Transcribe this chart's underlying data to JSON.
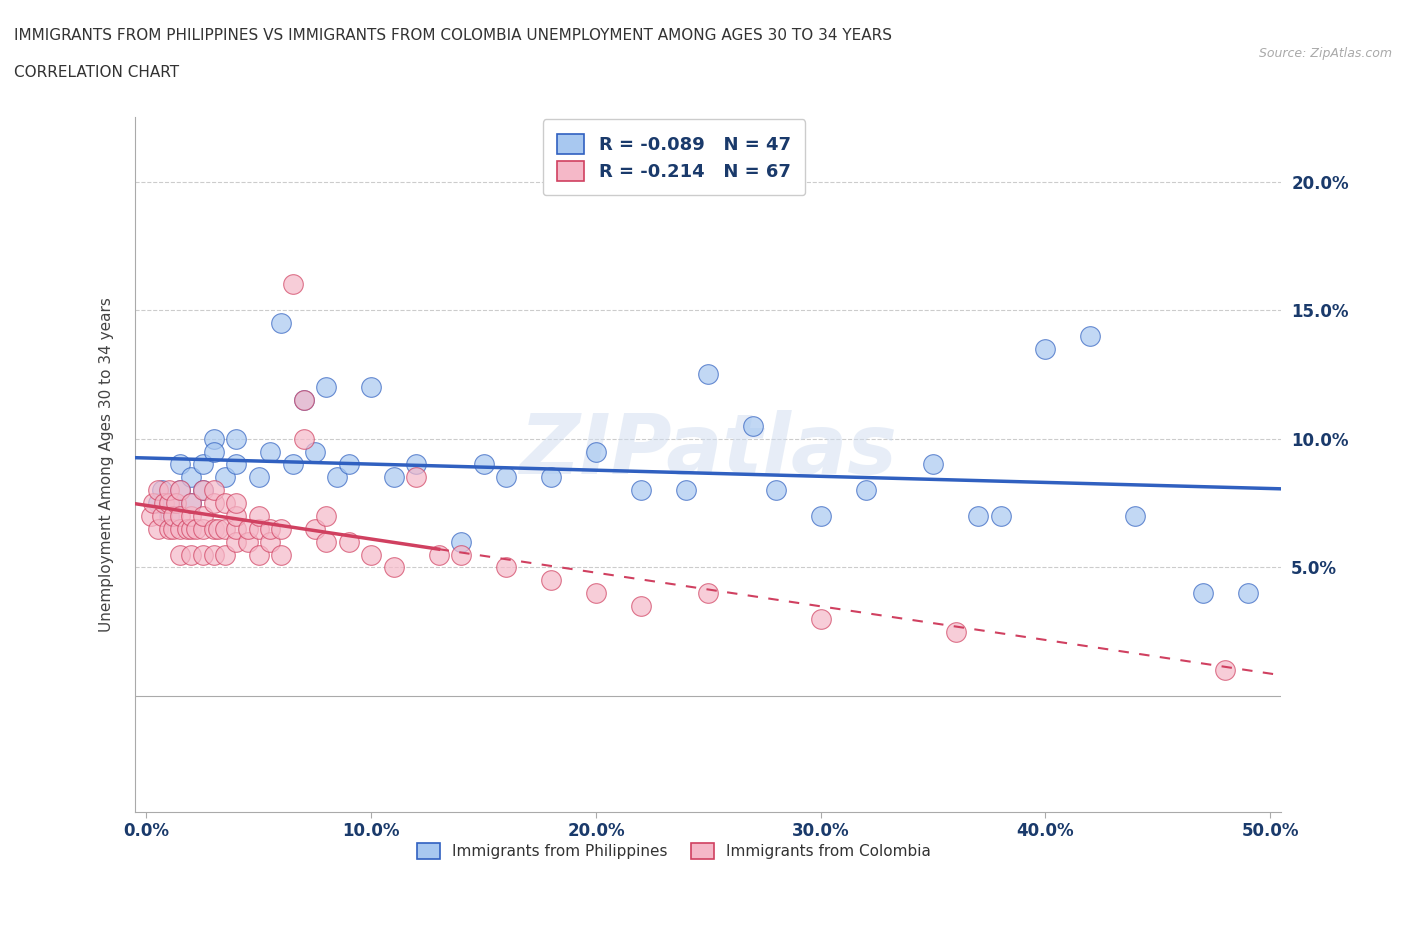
{
  "title_line1": "IMMIGRANTS FROM PHILIPPINES VS IMMIGRANTS FROM COLOMBIA UNEMPLOYMENT AMONG AGES 30 TO 34 YEARS",
  "title_line2": "CORRELATION CHART",
  "source": "Source: ZipAtlas.com",
  "xlabel_ticks": [
    0.0,
    0.1,
    0.2,
    0.3,
    0.4,
    0.5
  ],
  "xlabel_tick_labels": [
    "0.0%",
    "10.0%",
    "20.0%",
    "30.0%",
    "40.0%",
    "50.0%"
  ],
  "ylabel": "Unemployment Among Ages 30 to 34 years",
  "ylabel_ticks": [
    0.05,
    0.1,
    0.15,
    0.2
  ],
  "ylabel_tick_labels": [
    "5.0%",
    "10.0%",
    "15.0%",
    "20.0%"
  ],
  "xlim": [
    -0.005,
    0.505
  ],
  "ylim": [
    -0.045,
    0.225
  ],
  "yaxis_right": true,
  "color_philippines": "#a8c8f0",
  "color_colombia": "#f5b8c8",
  "color_regression_philippines": "#3060c0",
  "color_regression_colombia": "#d04060",
  "R_philippines": -0.089,
  "N_philippines": 47,
  "R_colombia": -0.214,
  "N_colombia": 67,
  "philippines_x": [
    0.005,
    0.007,
    0.01,
    0.012,
    0.015,
    0.015,
    0.02,
    0.02,
    0.025,
    0.025,
    0.03,
    0.03,
    0.035,
    0.04,
    0.04,
    0.05,
    0.055,
    0.06,
    0.065,
    0.07,
    0.075,
    0.08,
    0.085,
    0.09,
    0.1,
    0.11,
    0.12,
    0.14,
    0.15,
    0.16,
    0.18,
    0.2,
    0.22,
    0.24,
    0.25,
    0.27,
    0.28,
    0.3,
    0.32,
    0.35,
    0.37,
    0.38,
    0.4,
    0.42,
    0.44,
    0.47,
    0.49
  ],
  "philippines_y": [
    0.075,
    0.08,
    0.07,
    0.075,
    0.08,
    0.09,
    0.085,
    0.075,
    0.08,
    0.09,
    0.1,
    0.095,
    0.085,
    0.09,
    0.1,
    0.085,
    0.095,
    0.145,
    0.09,
    0.115,
    0.095,
    0.12,
    0.085,
    0.09,
    0.12,
    0.085,
    0.09,
    0.06,
    0.09,
    0.085,
    0.085,
    0.095,
    0.08,
    0.08,
    0.125,
    0.105,
    0.08,
    0.07,
    0.08,
    0.09,
    0.07,
    0.07,
    0.135,
    0.14,
    0.07,
    0.04,
    0.04
  ],
  "colombia_x": [
    0.002,
    0.003,
    0.005,
    0.005,
    0.007,
    0.008,
    0.01,
    0.01,
    0.01,
    0.012,
    0.012,
    0.013,
    0.015,
    0.015,
    0.015,
    0.015,
    0.018,
    0.02,
    0.02,
    0.02,
    0.02,
    0.022,
    0.025,
    0.025,
    0.025,
    0.025,
    0.03,
    0.03,
    0.03,
    0.03,
    0.032,
    0.035,
    0.035,
    0.035,
    0.04,
    0.04,
    0.04,
    0.04,
    0.045,
    0.045,
    0.05,
    0.05,
    0.05,
    0.055,
    0.055,
    0.06,
    0.06,
    0.065,
    0.07,
    0.07,
    0.075,
    0.08,
    0.08,
    0.09,
    0.1,
    0.11,
    0.12,
    0.13,
    0.14,
    0.16,
    0.18,
    0.2,
    0.22,
    0.25,
    0.3,
    0.36,
    0.48
  ],
  "colombia_y": [
    0.07,
    0.075,
    0.065,
    0.08,
    0.07,
    0.075,
    0.065,
    0.075,
    0.08,
    0.065,
    0.07,
    0.075,
    0.055,
    0.065,
    0.07,
    0.08,
    0.065,
    0.055,
    0.065,
    0.07,
    0.075,
    0.065,
    0.055,
    0.065,
    0.07,
    0.08,
    0.055,
    0.065,
    0.075,
    0.08,
    0.065,
    0.055,
    0.065,
    0.075,
    0.06,
    0.065,
    0.07,
    0.075,
    0.06,
    0.065,
    0.055,
    0.065,
    0.07,
    0.06,
    0.065,
    0.055,
    0.065,
    0.16,
    0.1,
    0.115,
    0.065,
    0.06,
    0.07,
    0.06,
    0.055,
    0.05,
    0.085,
    0.055,
    0.055,
    0.05,
    0.045,
    0.04,
    0.035,
    0.04,
    0.03,
    0.025,
    0.01
  ],
  "watermark": "ZIPatlas",
  "legend_text_color": "#1a3a6b",
  "grid_color": "#cccccc",
  "background_color": "#ffffff"
}
